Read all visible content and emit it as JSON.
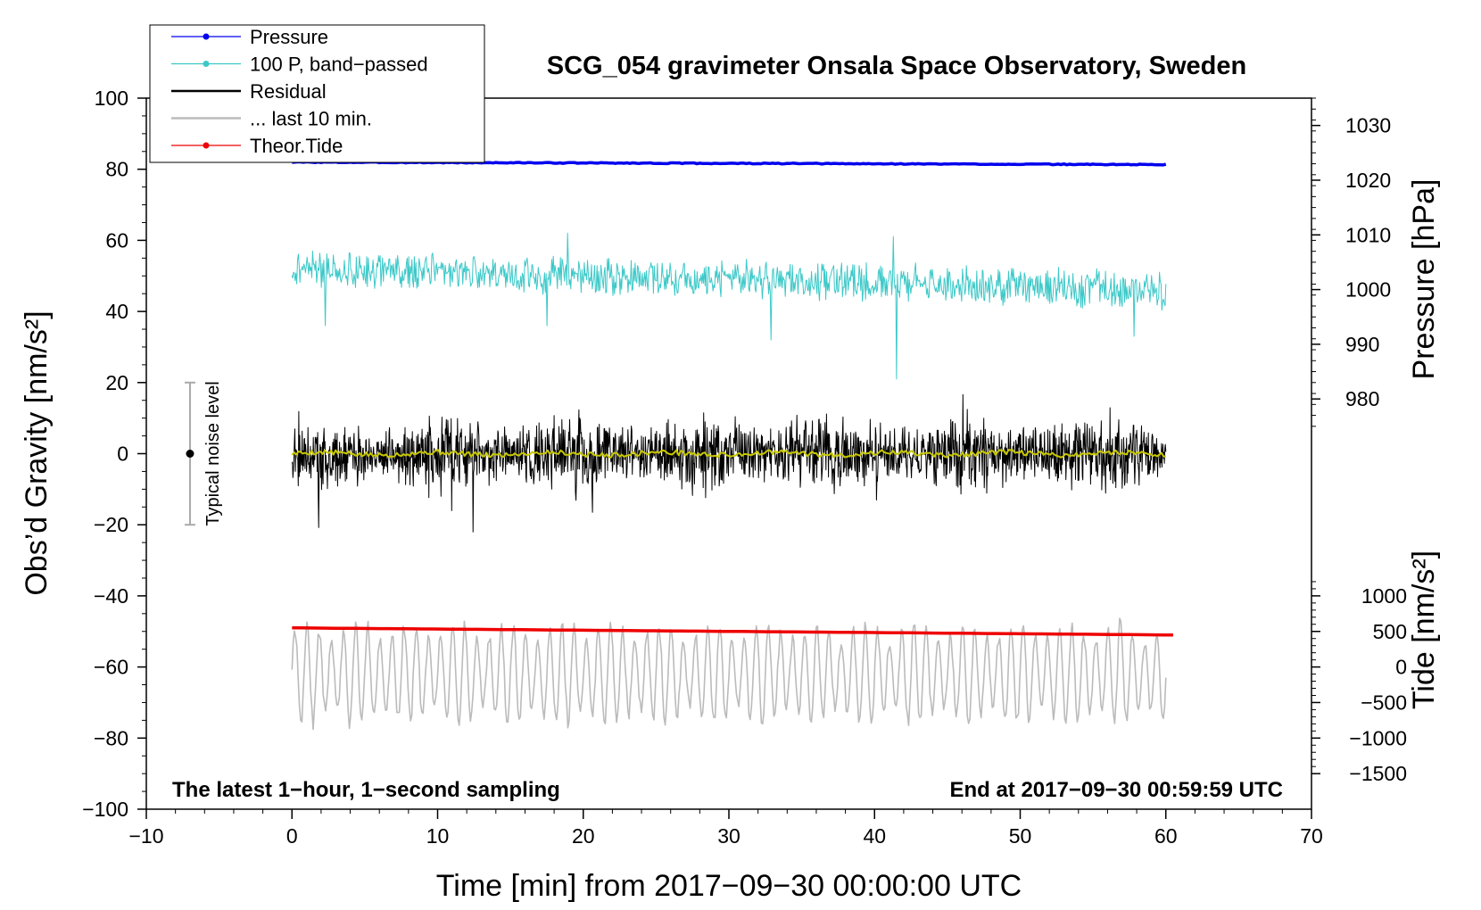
{
  "chart_data": {
    "type": "line",
    "title": "SCG_054 gravimeter Onsala Space Observatory, Sweden",
    "xlabel": "Time [min] from 2017−09−30 00:00:00 UTC",
    "ylabel_left": "Obs’d Gravity [nm/s²]",
    "ylabel_right_top": "Pressure [hPa]",
    "ylabel_right_bottom": "Tide [nm/s²]",
    "xlim": [
      -10,
      70
    ],
    "ylim": [
      -100,
      100
    ],
    "xticks": [
      {
        "value": -10,
        "label": "−10"
      },
      {
        "value": 0,
        "label": "0"
      },
      {
        "value": 10,
        "label": "10"
      },
      {
        "value": 20,
        "label": "20"
      },
      {
        "value": 30,
        "label": "30"
      },
      {
        "value": 40,
        "label": "40"
      },
      {
        "value": 50,
        "label": "50"
      },
      {
        "value": 60,
        "label": "60"
      },
      {
        "value": 70,
        "label": "70"
      }
    ],
    "yticks_left": [
      {
        "value": 100,
        "label": "100"
      },
      {
        "value": 80,
        "label": "80"
      },
      {
        "value": 60,
        "label": "60"
      },
      {
        "value": 40,
        "label": "40"
      },
      {
        "value": 20,
        "label": "20"
      },
      {
        "value": 0,
        "label": "0"
      },
      {
        "value": -20,
        "label": "−20"
      },
      {
        "value": -40,
        "label": "−40"
      },
      {
        "value": -60,
        "label": "−60"
      },
      {
        "value": -80,
        "label": "−80"
      },
      {
        "value": -100,
        "label": "−100"
      }
    ],
    "yticks_pressure": [
      {
        "value": 1030,
        "label": "1030"
      },
      {
        "value": 1020,
        "label": "1020"
      },
      {
        "value": 1010,
        "label": "1010"
      },
      {
        "value": 1000,
        "label": "1000"
      },
      {
        "value": 990,
        "label": "990"
      },
      {
        "value": 980,
        "label": "980"
      }
    ],
    "yticks_tide": [
      {
        "value": 1000,
        "label": "1000"
      },
      {
        "value": 500,
        "label": "500"
      },
      {
        "value": 0,
        "label": "0"
      },
      {
        "value": -500,
        "label": "−500"
      },
      {
        "value": -1000,
        "label": "−1000"
      },
      {
        "value": -1500,
        "label": "−1500"
      }
    ],
    "pressure_scale": {
      "axis_value_at_gravity_0": 970,
      "axis_units_per_gravity_unit": 0.65
    },
    "tide_scale": {
      "axis_value_at_gravity_0": 3000,
      "axis_units_per_gravity_unit": 50
    },
    "series": [
      {
        "name": "Pressure",
        "color": "#0000ee",
        "x_range": [
          0,
          60
        ],
        "start": 82,
        "end": 81.3,
        "wobble": 0.25
      },
      {
        "name": "100 P, band−passed",
        "color": "#3cc8c8",
        "x_range": [
          0,
          60
        ],
        "start": 52,
        "end": 46,
        "amplitude": 5,
        "spikes": [
          {
            "x": 41.5,
            "value": 21
          },
          {
            "x": 32.9,
            "value": 32
          },
          {
            "x": 57.8,
            "value": 33
          },
          {
            "x": 2.3,
            "value": 36
          },
          {
            "x": 17.5,
            "value": 36
          },
          {
            "x": 18.9,
            "value": 62
          },
          {
            "x": 41.3,
            "value": 61
          }
        ]
      },
      {
        "name": "Residual",
        "color": "#000000",
        "x_range": [
          0,
          60
        ],
        "center": 0,
        "amplitude": 9,
        "range_observed": [
          -22,
          22
        ]
      },
      {
        "name": "... last 10 min.",
        "color": "#bbbbbb",
        "x_range": [
          0,
          60
        ],
        "center": -62,
        "amplitude": 10,
        "range_observed": [
          -82,
          -43
        ]
      },
      {
        "name": "Theor.Tide",
        "color": "#ee0000",
        "x_range": [
          0,
          60.5
        ],
        "start": -49,
        "end": -51
      },
      {
        "name": "smoothed residual",
        "color": "#c8c800",
        "x_range": [
          0,
          60
        ],
        "center": 0,
        "amplitude": 0.7
      }
    ],
    "legend": [
      {
        "label": "Pressure",
        "color": "#0000ee",
        "marker": "dot"
      },
      {
        "label": "100 P, band−passed",
        "color": "#3cc8c8",
        "marker": "dot"
      },
      {
        "label": "Residual",
        "color": "#000000",
        "marker": "line"
      },
      {
        "label": "... last 10 min.",
        "color": "#bbbbbb",
        "marker": "line"
      },
      {
        "label": "Theor.Tide",
        "color": "#ee0000",
        "marker": "dot"
      }
    ],
    "legend_position": "top-left",
    "noise_level": {
      "label": "Typical noise level",
      "x": -7,
      "center": 0,
      "range": [
        -20,
        20
      ]
    },
    "annotations": {
      "bottom_left": "The latest 1−hour, 1−second sampling",
      "bottom_right": "End at 2017−09−30 00:59:59 UTC"
    }
  }
}
